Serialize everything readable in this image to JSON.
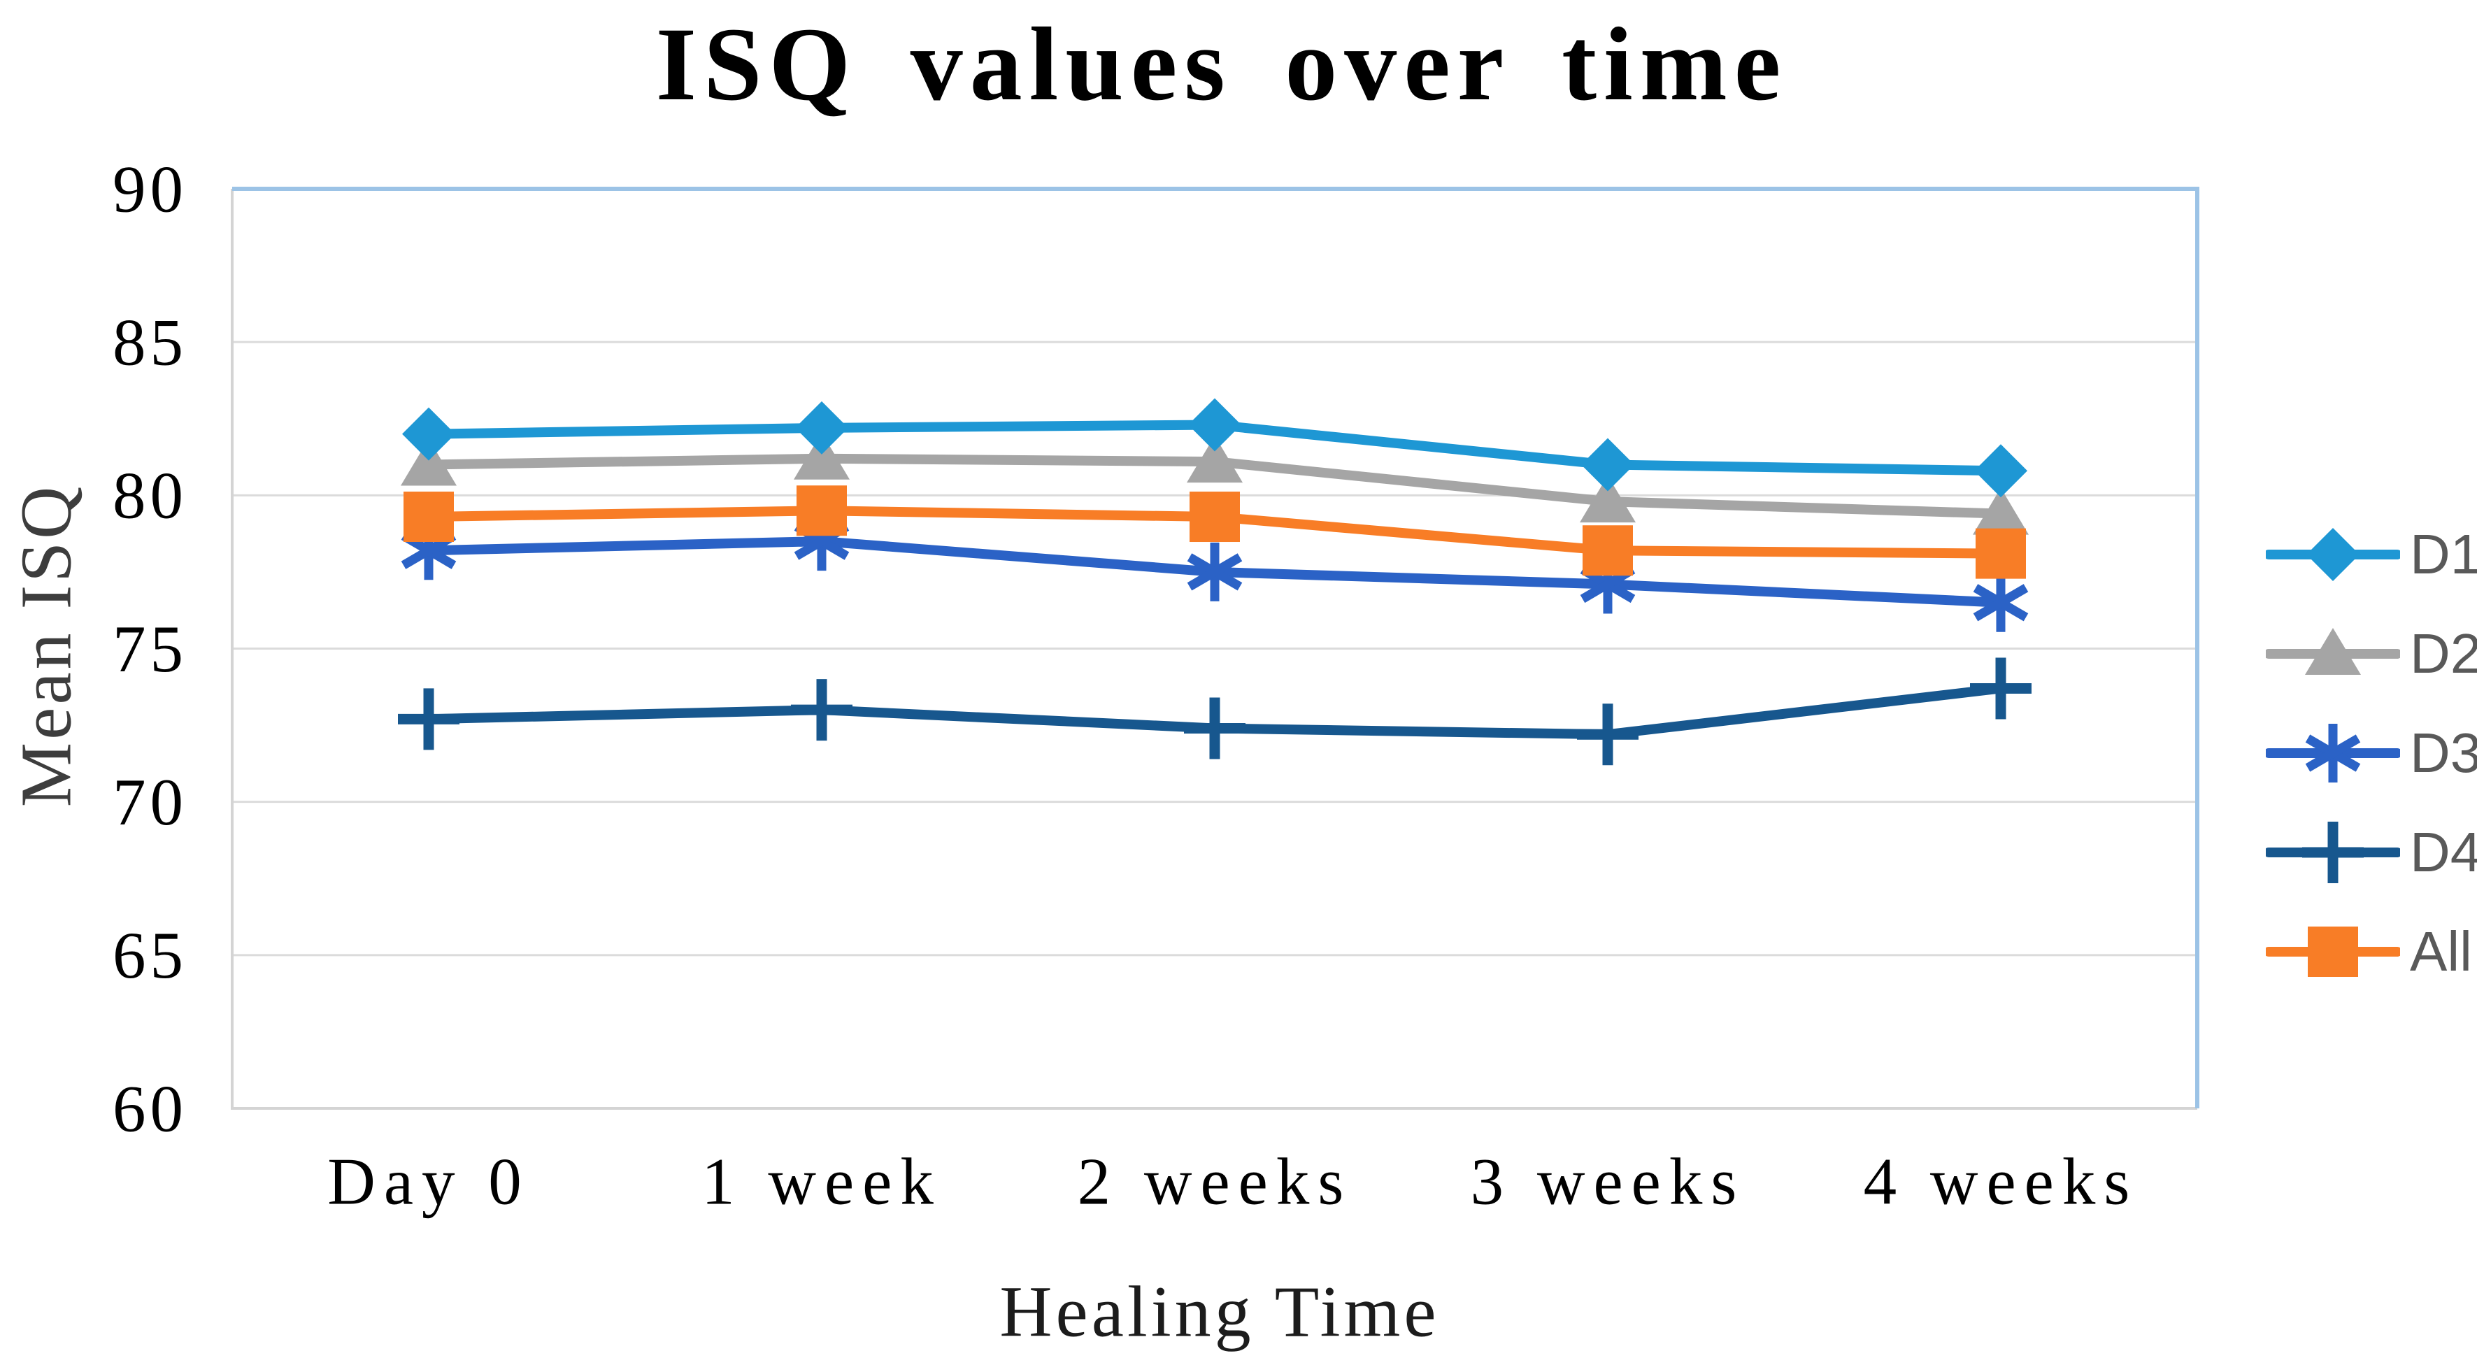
{
  "figure": {
    "title": "ISQ values over time",
    "y_axis_title": "Mean ISQ",
    "x_axis_title": "Healing Time"
  },
  "chart_data": {
    "type": "line",
    "title": "ISQ values over time",
    "xlabel": "Healing Time",
    "ylabel": "Mean ISQ",
    "categories": [
      "Day 0",
      "1 week",
      "2 weeks",
      "3 weeks",
      "4 weeks"
    ],
    "series": [
      {
        "name": "D1",
        "marker": "diamond",
        "color": "#1E97D4",
        "values": [
          82.0,
          82.2,
          82.3,
          81.0,
          80.8
        ]
      },
      {
        "name": "D2",
        "marker": "triangle",
        "color": "#A5A5A5",
        "values": [
          81.0,
          81.2,
          81.1,
          79.8,
          79.4
        ]
      },
      {
        "name": "D3",
        "marker": "asterisk",
        "color": "#2B62C6",
        "values": [
          78.2,
          78.5,
          77.5,
          77.1,
          76.5
        ]
      },
      {
        "name": "D4",
        "marker": "plus",
        "color": "#17578E",
        "values": [
          72.7,
          73.0,
          72.4,
          72.2,
          73.7
        ]
      },
      {
        "name": "All",
        "marker": "square",
        "color": "#F87D26",
        "values": [
          79.3,
          79.5,
          79.3,
          78.2,
          78.1
        ]
      }
    ],
    "ylim": [
      60,
      90
    ],
    "y_ticks": [
      90,
      85,
      80,
      75,
      70,
      65,
      60
    ],
    "grid": "horizontal-major",
    "legend_position": "right",
    "colors": {
      "gridline": "#DBDBDB",
      "axis_line": "#D4D4D4",
      "plot_border": "#9CC3E6",
      "tick_text": "#000000",
      "legend_text": "#595959",
      "title_text": "#000000"
    }
  }
}
